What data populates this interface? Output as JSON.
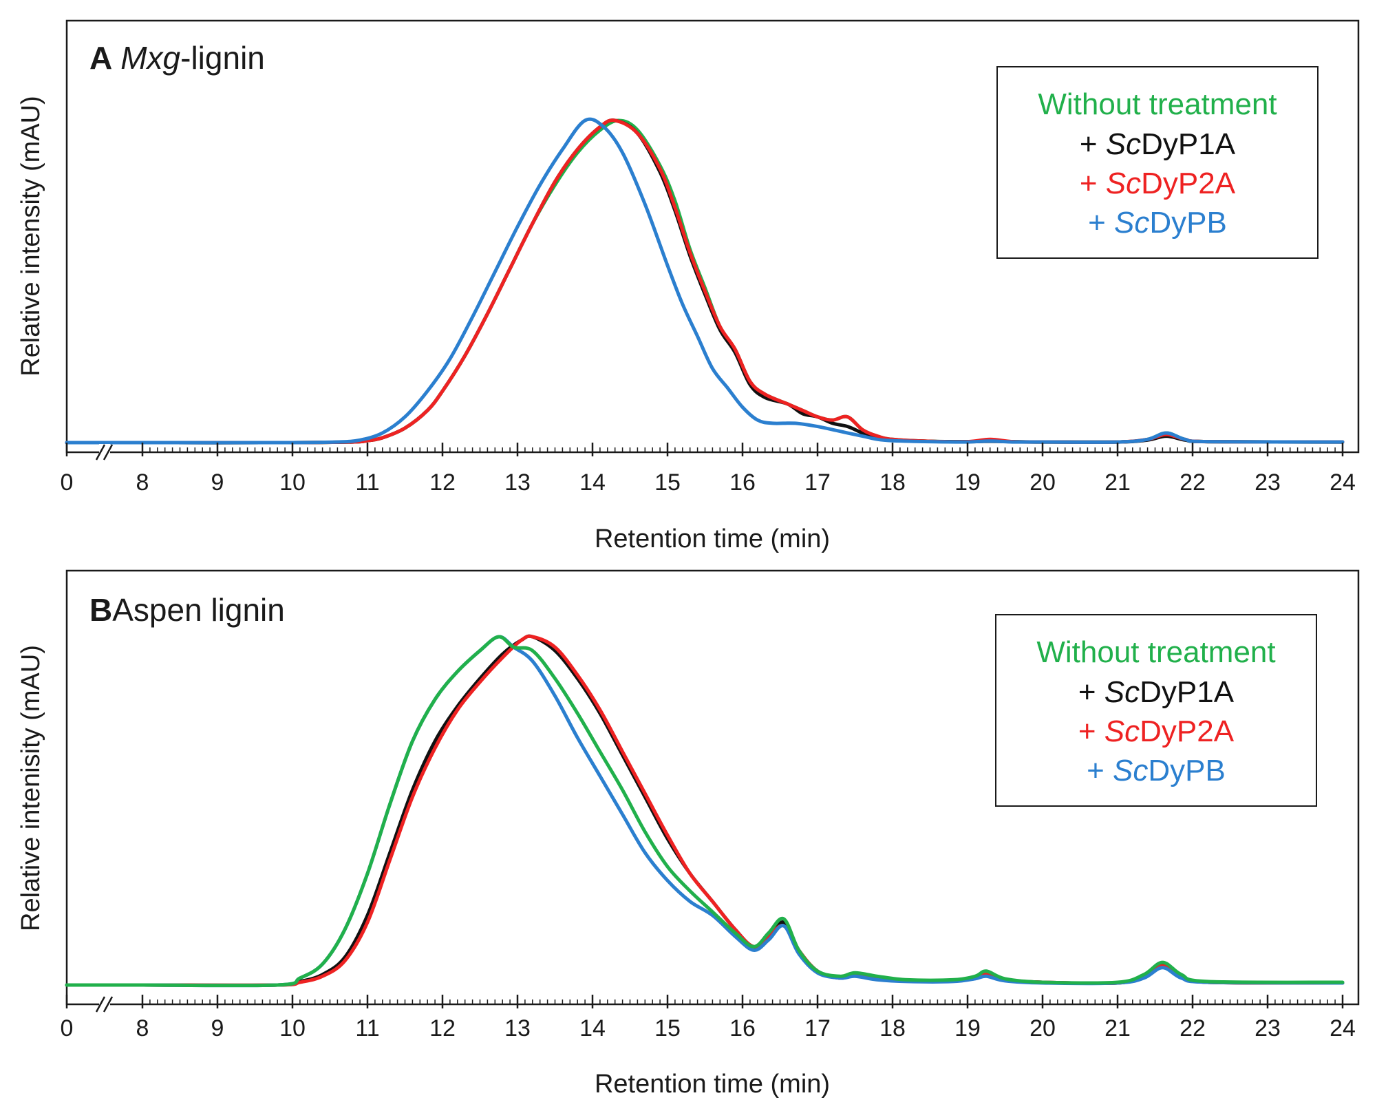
{
  "colors": {
    "without": "#21b04b",
    "dyp1a": "#111111",
    "dyp2a": "#ee2222",
    "dypb": "#2b7fcf",
    "axis": "#1a1a1a"
  },
  "chart_data": [
    {
      "type": "line",
      "panel_letter": "A",
      "title_italic": "Mxg",
      "title_rest": "-lignin",
      "xlabel": "Retention time (min)",
      "ylabel": "Relative intensity (mAU)",
      "xlim": [
        0,
        24
      ],
      "x_axis_break": "between 0 and 8 min",
      "tick_labels": [
        "0",
        "8",
        "9",
        "10",
        "11",
        "12",
        "13",
        "14",
        "15",
        "16",
        "17",
        "18",
        "19",
        "20",
        "21",
        "22",
        "23",
        "24"
      ],
      "y_units": "relative (0 = baseline, 1 = highest peak)",
      "legend": {
        "placement": "top-right",
        "entries": [
          {
            "prefix": "Without treatment",
            "italic": "",
            "suffix": "",
            "color_key": "without"
          },
          {
            "prefix": "+ ",
            "italic": "Sc",
            "suffix": "DyP1A",
            "color_key": "dyp1a"
          },
          {
            "prefix": "+ ",
            "italic": "Sc",
            "suffix": "DyP2A",
            "color_key": "dyp2a"
          },
          {
            "prefix": "+ ",
            "italic": "Sc",
            "suffix": "DyPB",
            "color_key": "dypb"
          }
        ]
      },
      "series": [
        {
          "name": "Without treatment",
          "color_key": "without",
          "x": [
            0,
            8,
            10,
            10.8,
            11,
            11.2,
            11.5,
            11.8,
            12,
            12.3,
            12.6,
            12.9,
            13.2,
            13.5,
            13.8,
            14.1,
            14.35,
            14.6,
            14.9,
            15.1,
            15.3,
            15.5,
            15.7,
            15.9,
            16.1,
            16.3,
            16.6,
            16.8,
            17,
            17.2,
            17.4,
            17.6,
            17.8,
            18,
            18.5,
            19,
            19.3,
            19.6,
            20,
            21,
            21.4,
            21.65,
            21.9,
            22.2,
            24
          ],
          "y": [
            0,
            0,
            0,
            0.002,
            0.006,
            0.015,
            0.045,
            0.1,
            0.16,
            0.27,
            0.4,
            0.54,
            0.68,
            0.8,
            0.9,
            0.97,
            1.0,
            0.97,
            0.86,
            0.75,
            0.6,
            0.48,
            0.36,
            0.29,
            0.19,
            0.15,
            0.12,
            0.1,
            0.08,
            0.07,
            0.08,
            0.04,
            0.02,
            0.01,
            0.004,
            0.003,
            0.006,
            0.003,
            0.002,
            0.002,
            0.01,
            0.03,
            0.01,
            0.003,
            0.002
          ]
        },
        {
          "name": "+ ScDyP1A",
          "color_key": "dyp1a",
          "x": [
            0,
            8,
            10,
            10.8,
            11,
            11.2,
            11.5,
            11.8,
            12,
            12.3,
            12.6,
            12.9,
            13.2,
            13.5,
            13.8,
            14.1,
            14.3,
            14.6,
            14.9,
            15.1,
            15.3,
            15.5,
            15.7,
            15.9,
            16.1,
            16.3,
            16.6,
            16.8,
            17,
            17.2,
            17.4,
            17.6,
            17.8,
            18,
            18.5,
            19,
            19.3,
            19.6,
            20,
            21,
            21.4,
            21.65,
            21.9,
            22.2,
            24
          ],
          "y": [
            0,
            0,
            0,
            0.002,
            0.006,
            0.015,
            0.045,
            0.1,
            0.16,
            0.27,
            0.4,
            0.54,
            0.68,
            0.81,
            0.91,
            0.98,
            1.0,
            0.96,
            0.84,
            0.72,
            0.58,
            0.46,
            0.35,
            0.28,
            0.18,
            0.14,
            0.12,
            0.09,
            0.08,
            0.06,
            0.05,
            0.03,
            0.015,
            0.008,
            0.004,
            0.003,
            0.004,
            0.003,
            0.002,
            0.002,
            0.008,
            0.02,
            0.008,
            0.003,
            0.002
          ]
        },
        {
          "name": "+ ScDyP2A",
          "color_key": "dyp2a",
          "x": [
            0,
            8,
            10,
            10.8,
            11,
            11.2,
            11.5,
            11.8,
            12,
            12.3,
            12.6,
            12.9,
            13.2,
            13.5,
            13.8,
            14.1,
            14.3,
            14.6,
            14.9,
            15.1,
            15.3,
            15.5,
            15.7,
            15.9,
            16.1,
            16.3,
            16.6,
            16.8,
            17,
            17.2,
            17.4,
            17.6,
            17.8,
            18,
            18.5,
            19,
            19.3,
            19.6,
            20,
            21,
            21.4,
            21.65,
            21.9,
            22.2,
            24
          ],
          "y": [
            0,
            0,
            0,
            0.002,
            0.006,
            0.015,
            0.045,
            0.1,
            0.16,
            0.27,
            0.4,
            0.54,
            0.68,
            0.81,
            0.91,
            0.98,
            1.0,
            0.96,
            0.85,
            0.73,
            0.59,
            0.47,
            0.36,
            0.29,
            0.19,
            0.15,
            0.12,
            0.1,
            0.08,
            0.07,
            0.08,
            0.04,
            0.02,
            0.01,
            0.004,
            0.003,
            0.01,
            0.003,
            0.002,
            0.002,
            0.01,
            0.025,
            0.01,
            0.003,
            0.002
          ]
        },
        {
          "name": "+ ScDyPB",
          "color_key": "dypb",
          "x": [
            0,
            8,
            10,
            10.6,
            10.9,
            11.2,
            11.5,
            11.8,
            12.1,
            12.4,
            12.7,
            13,
            13.3,
            13.6,
            13.9,
            14.15,
            14.4,
            14.7,
            15,
            15.2,
            15.4,
            15.6,
            15.8,
            16,
            16.2,
            16.4,
            16.7,
            17,
            17.3,
            17.6,
            17.8,
            18,
            18.5,
            19,
            19.3,
            19.6,
            20,
            21,
            21.4,
            21.65,
            21.9,
            22.2,
            24
          ],
          "y": [
            0,
            0,
            0,
            0.002,
            0.008,
            0.03,
            0.08,
            0.16,
            0.26,
            0.39,
            0.53,
            0.67,
            0.8,
            0.91,
            1.0,
            0.98,
            0.9,
            0.74,
            0.55,
            0.43,
            0.33,
            0.23,
            0.17,
            0.11,
            0.07,
            0.06,
            0.06,
            0.05,
            0.035,
            0.02,
            0.01,
            0.006,
            0.003,
            0.002,
            0.005,
            0.002,
            0.002,
            0.002,
            0.01,
            0.03,
            0.01,
            0.003,
            0.002
          ]
        }
      ]
    },
    {
      "type": "line",
      "panel_letter": "B",
      "title_italic": "",
      "title_rest": "Aspen lignin",
      "xlabel": "Retention time (min)",
      "ylabel": "Relative intenisity (mAU)",
      "xlim": [
        0,
        24
      ],
      "x_axis_break": "between 0 and 8 min",
      "tick_labels": [
        "0",
        "8",
        "9",
        "10",
        "11",
        "12",
        "13",
        "14",
        "15",
        "16",
        "17",
        "18",
        "19",
        "20",
        "21",
        "22",
        "23",
        "24"
      ],
      "y_units": "relative (0 = baseline, 1 = highest peak)",
      "legend": {
        "placement": "top-right",
        "entries": [
          {
            "prefix": "Without treatment",
            "italic": "",
            "suffix": "",
            "color_key": "without"
          },
          {
            "prefix": "+ ",
            "italic": "Sc",
            "suffix": "DyP1A",
            "color_key": "dyp1a"
          },
          {
            "prefix": "+ ",
            "italic": "Sc",
            "suffix": "DyP2A",
            "color_key": "dyp2a"
          },
          {
            "prefix": "+ ",
            "italic": "Sc",
            "suffix": "DyPB",
            "color_key": "dypb"
          }
        ]
      },
      "series": [
        {
          "name": "+ ScDyP1A",
          "color_key": "dyp1a",
          "x": [
            0,
            8,
            9.8,
            10.1,
            10.4,
            10.7,
            11,
            11.3,
            11.6,
            11.9,
            12.2,
            12.5,
            12.8,
            13.05,
            13.2,
            13.5,
            13.8,
            14.1,
            14.4,
            14.7,
            15,
            15.3,
            15.6,
            15.9,
            16.15,
            16.35,
            16.55,
            16.75,
            17,
            17.3,
            17.5,
            17.8,
            18.2,
            18.8,
            19.1,
            19.25,
            19.5,
            20,
            21,
            21.35,
            21.6,
            21.85,
            22.2,
            24
          ],
          "y": [
            0,
            0,
            0,
            0.01,
            0.03,
            0.08,
            0.2,
            0.38,
            0.56,
            0.7,
            0.8,
            0.88,
            0.95,
            0.99,
            1.0,
            0.96,
            0.88,
            0.78,
            0.66,
            0.54,
            0.42,
            0.32,
            0.24,
            0.16,
            0.11,
            0.14,
            0.18,
            0.1,
            0.04,
            0.02,
            0.03,
            0.02,
            0.012,
            0.012,
            0.02,
            0.03,
            0.015,
            0.008,
            0.006,
            0.025,
            0.06,
            0.025,
            0.008,
            0.006
          ]
        },
        {
          "name": "+ ScDyP2A",
          "color_key": "dyp2a",
          "x": [
            0,
            8,
            9.8,
            10.1,
            10.4,
            10.7,
            11,
            11.3,
            11.6,
            11.9,
            12.2,
            12.5,
            12.8,
            13.05,
            13.2,
            13.5,
            13.8,
            14.1,
            14.4,
            14.7,
            15,
            15.3,
            15.6,
            15.9,
            16.15,
            16.35,
            16.55,
            16.75,
            17,
            17.3,
            17.5,
            17.8,
            18.2,
            18.8,
            19.1,
            19.25,
            19.5,
            20,
            21,
            21.35,
            21.6,
            21.85,
            22.2,
            24
          ],
          "y": [
            0,
            0,
            0,
            0.008,
            0.025,
            0.07,
            0.18,
            0.36,
            0.54,
            0.68,
            0.79,
            0.87,
            0.94,
            0.99,
            1.0,
            0.97,
            0.89,
            0.79,
            0.67,
            0.55,
            0.43,
            0.32,
            0.24,
            0.16,
            0.11,
            0.14,
            0.17,
            0.1,
            0.04,
            0.02,
            0.03,
            0.02,
            0.012,
            0.012,
            0.02,
            0.03,
            0.015,
            0.008,
            0.006,
            0.025,
            0.055,
            0.025,
            0.008,
            0.006
          ]
        },
        {
          "name": "+ ScDyPB",
          "color_key": "dypb",
          "x": [
            0,
            8,
            9.8,
            10.1,
            10.4,
            10.7,
            11,
            11.3,
            11.6,
            11.9,
            12.2,
            12.5,
            12.75,
            12.95,
            13.2,
            13.5,
            13.8,
            14.1,
            14.4,
            14.7,
            15,
            15.3,
            15.6,
            15.9,
            16.15,
            16.35,
            16.55,
            16.75,
            17,
            17.3,
            17.5,
            17.8,
            18.2,
            18.8,
            19.1,
            19.25,
            19.5,
            20,
            21,
            21.35,
            21.6,
            21.85,
            22.2,
            24
          ],
          "y": [
            0,
            0,
            0,
            0.02,
            0.06,
            0.16,
            0.32,
            0.52,
            0.7,
            0.82,
            0.9,
            0.96,
            1.0,
            0.97,
            0.93,
            0.83,
            0.71,
            0.6,
            0.49,
            0.38,
            0.3,
            0.24,
            0.2,
            0.14,
            0.1,
            0.13,
            0.17,
            0.09,
            0.035,
            0.02,
            0.025,
            0.015,
            0.01,
            0.01,
            0.018,
            0.025,
            0.012,
            0.006,
            0.006,
            0.02,
            0.05,
            0.02,
            0.008,
            0.006
          ]
        },
        {
          "name": "Without treatment",
          "color_key": "without",
          "x": [
            0,
            8,
            9.8,
            10.1,
            10.4,
            10.7,
            11,
            11.3,
            11.6,
            11.9,
            12.2,
            12.5,
            12.75,
            12.95,
            13.2,
            13.5,
            13.8,
            14.1,
            14.4,
            14.7,
            15,
            15.3,
            15.6,
            15.9,
            16.15,
            16.35,
            16.55,
            16.75,
            17,
            17.3,
            17.5,
            17.8,
            18.2,
            18.8,
            19.1,
            19.25,
            19.5,
            20,
            21,
            21.35,
            21.6,
            21.85,
            22.2,
            24
          ],
          "y": [
            0,
            0,
            0,
            0.02,
            0.06,
            0.16,
            0.32,
            0.52,
            0.7,
            0.82,
            0.9,
            0.96,
            1.0,
            0.97,
            0.96,
            0.88,
            0.78,
            0.67,
            0.56,
            0.44,
            0.34,
            0.27,
            0.21,
            0.15,
            0.11,
            0.15,
            0.19,
            0.1,
            0.04,
            0.025,
            0.035,
            0.025,
            0.015,
            0.015,
            0.025,
            0.04,
            0.018,
            0.008,
            0.008,
            0.03,
            0.065,
            0.03,
            0.01,
            0.008
          ]
        }
      ]
    }
  ]
}
